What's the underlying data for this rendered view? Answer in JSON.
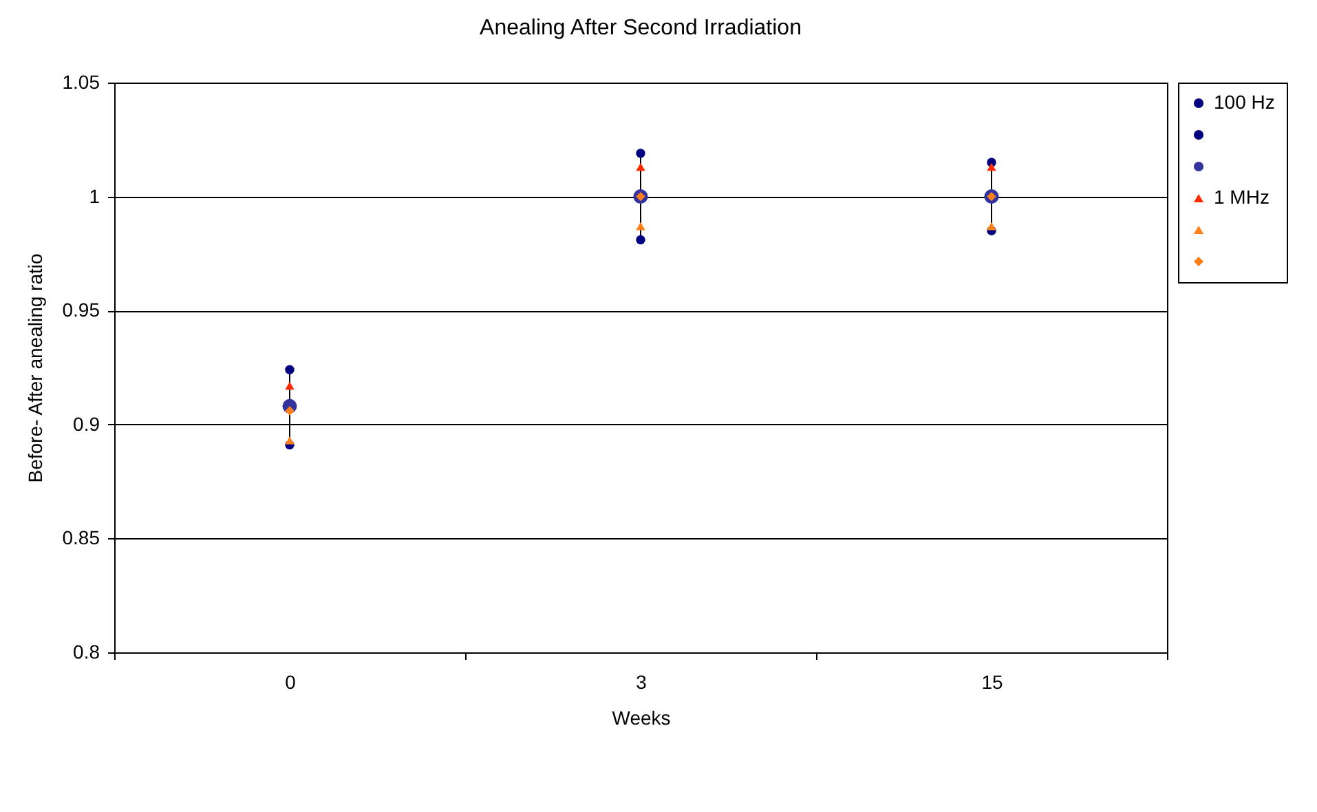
{
  "chart_data": {
    "type": "scatter",
    "title": "Anealing After Second Irradiation",
    "xlabel": "Weeks",
    "ylabel": "Before- After anealing ratio",
    "categories": [
      "0",
      "3",
      "15"
    ],
    "series": [
      {
        "name": "100 Hz",
        "color": "#000080",
        "marker": "circle",
        "values": [
          0.924,
          1.019,
          1.015
        ]
      },
      {
        "color": "#000080",
        "marker": "circle",
        "values": [
          0.891,
          0.981,
          0.985
        ]
      },
      {
        "color": "#3333a0",
        "marker": "circle",
        "values": [
          0.908,
          1.0,
          1.0
        ]
      },
      {
        "name": "1 MHz",
        "color": "#ff2a00",
        "marker": "triangle",
        "values": [
          0.917,
          1.013,
          1.013
        ]
      },
      {
        "color": "#ff7f1a",
        "marker": "triangle",
        "values": [
          0.893,
          0.987,
          0.987
        ]
      },
      {
        "color": "#ff7f1a",
        "marker": "diamond",
        "values": [
          0.906,
          1.0,
          1.0
        ]
      }
    ],
    "ylim": [
      0.8,
      1.05
    ],
    "yticks": [
      0.8,
      0.85,
      0.9,
      0.95,
      1,
      1.05
    ],
    "grid": "y",
    "legend": "right"
  }
}
